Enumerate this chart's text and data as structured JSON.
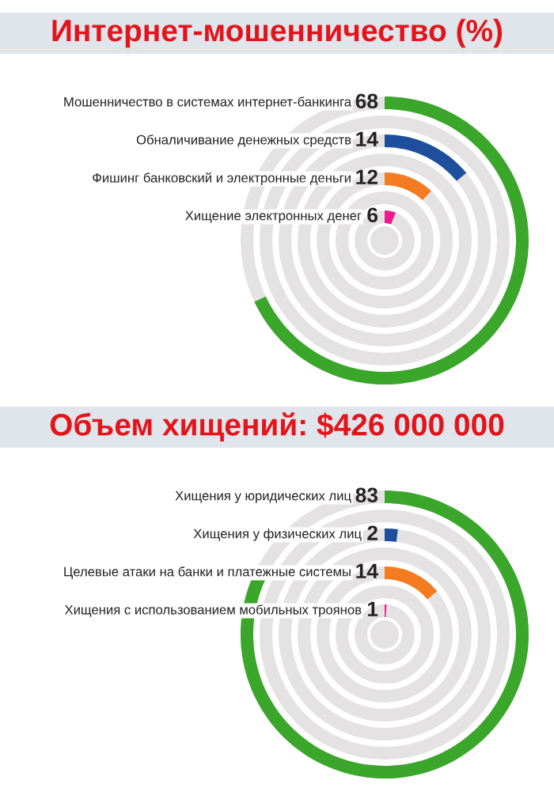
{
  "chart_data": [
    {
      "type": "other",
      "title": "Интернет-мошенничество (%)",
      "categories": [
        "Мошенничество в системах интернет-банкинга",
        "Обналичивание денежных средств",
        "Фишинг банковский и электронные деньги",
        "Хищение электронных денег"
      ],
      "values": [
        68,
        14,
        12,
        6
      ],
      "colors": [
        "#3aa62a",
        "#1d4f9c",
        "#f47b20",
        "#ec1a8c"
      ],
      "data_labels": true
    },
    {
      "type": "other",
      "title": "Объем хищений: $426 000 000",
      "categories": [
        "Хищения у юридических лиц",
        "Хищения у физических лиц",
        "Целевые атаки на банки и платежные системы",
        "Хищения с использованием мобильных троянов"
      ],
      "values": [
        83,
        2,
        14,
        1
      ],
      "colors": [
        "#3aa62a",
        "#1d4f9c",
        "#f47b20",
        "#ec1a8c"
      ],
      "data_labels": true
    }
  ]
}
